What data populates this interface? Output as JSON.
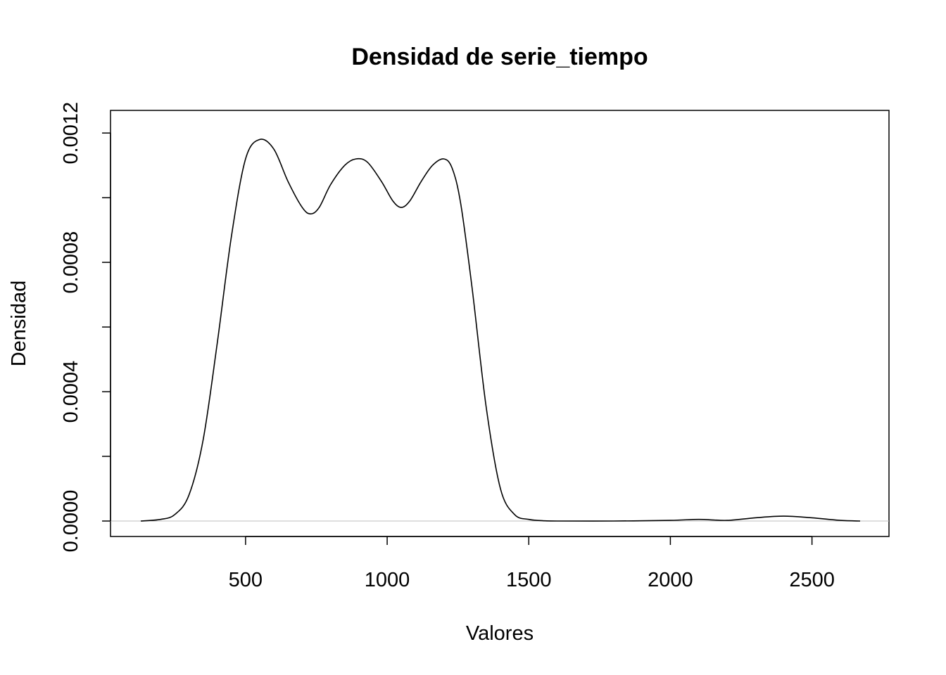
{
  "chart_data": {
    "type": "line",
    "title": "Densidad de serie_tiempo",
    "xlabel": "Valores",
    "ylabel": "Densidad",
    "xlim": [
      130,
      2670
    ],
    "ylim": [
      0,
      0.00122
    ],
    "x_ticks": [
      500,
      1000,
      1500,
      2000,
      2500
    ],
    "x_tick_labels": [
      "500",
      "1000",
      "1500",
      "2000",
      "2500"
    ],
    "y_ticks": [
      0,
      0.0002,
      0.0004,
      0.0006,
      0.0008,
      0.001,
      0.0012
    ],
    "y_tick_labels": [
      "0.0000",
      "",
      "0.0004",
      "",
      "0.0008",
      "",
      "0.0012"
    ],
    "zero_line": true,
    "grid": false,
    "legend": "none",
    "colors": {
      "line": "#000000",
      "zero_line": "#bebebe",
      "frame": "#000000"
    },
    "series": [
      {
        "x": [
          130,
          200,
          250,
          300,
          350,
          400,
          450,
          500,
          550,
          600,
          650,
          700,
          730,
          760,
          800,
          850,
          890,
          930,
          980,
          1020,
          1050,
          1080,
          1120,
          1160,
          1200,
          1230,
          1260,
          1300,
          1350,
          1400,
          1450,
          1500,
          1550,
          1600,
          1800,
          2000,
          2100,
          2200,
          2300,
          2400,
          2500,
          2600,
          2670
        ],
        "y": [
          0,
          5e-06,
          2e-05,
          8e-05,
          0.00025,
          0.00055,
          0.00088,
          0.00112,
          0.00118,
          0.00115,
          0.00105,
          0.00097,
          0.00095,
          0.00097,
          0.00104,
          0.0011,
          0.00112,
          0.00111,
          0.00105,
          0.00099,
          0.00097,
          0.00099,
          0.00105,
          0.0011,
          0.00112,
          0.00109,
          0.00098,
          0.00072,
          0.00035,
          0.0001,
          2e-05,
          5e-06,
          1e-06,
          0,
          0,
          2e-06,
          5e-06,
          2e-06,
          1e-05,
          1.5e-05,
          1e-05,
          2e-06,
          0
        ]
      }
    ]
  }
}
